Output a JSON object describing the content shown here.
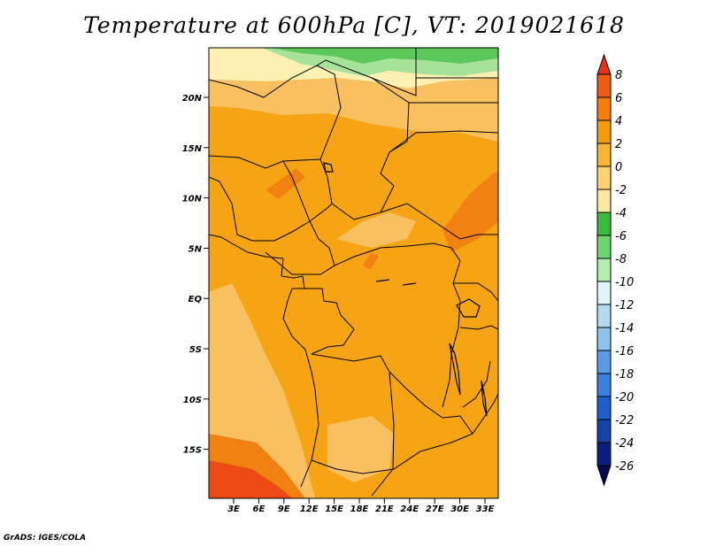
{
  "title": "Temperature at 600hPa [C], VT: 2019021618",
  "credit": "GrADS: IGES/COLA",
  "map": {
    "lat_ticks": [
      "20N",
      "15N",
      "10N",
      "5N",
      "EQ",
      "5S",
      "10S",
      "15S"
    ],
    "lon_ticks": [
      "3E",
      "6E",
      "9E",
      "12E",
      "15E",
      "18E",
      "21E",
      "24E",
      "27E",
      "30E",
      "33E"
    ]
  },
  "colorbar": {
    "labels": [
      "8",
      "6",
      "4",
      "2",
      "0",
      "-2",
      "-4",
      "-6",
      "-8",
      "-10",
      "-12",
      "-14",
      "-16",
      "-18",
      "-20",
      "-22",
      "-24",
      "-26"
    ],
    "colors": [
      "#e63419",
      "#ee5b12",
      "#f47d0e",
      "#f59b0c",
      "#f8b435",
      "#fcd373",
      "#fdeaa0",
      "#3cba3c",
      "#6ed66e",
      "#b5eeb0",
      "#e0f5f8",
      "#b3dcf3",
      "#8ec3ee",
      "#5a9de6",
      "#3b80df",
      "#1e5fcc",
      "#1442a6",
      "#0a2080",
      "#050a50"
    ]
  },
  "palette": {
    "green": "#5cc85c",
    "light_green": "#a6e29a",
    "pale_yellow": "#fdf0b0",
    "light_orange": "#f8c060",
    "orange": "#f6a413",
    "dark_orange": "#f18212",
    "red_orange": "#ec4a14"
  }
}
